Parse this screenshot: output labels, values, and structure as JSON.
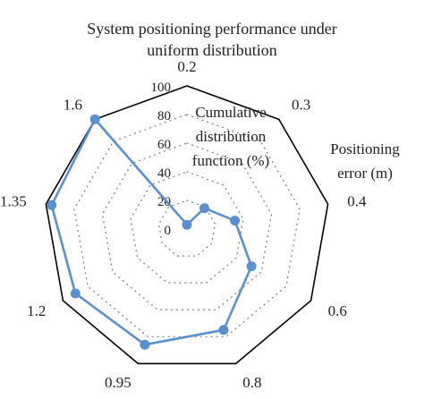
{
  "chart_data": {
    "type": "radar",
    "title": "System positioning performance under uniform distribution",
    "categories": [
      "0.2",
      "0.3",
      "0.4",
      "0.6",
      "0.8",
      "0.95",
      "1.2",
      "1.35",
      "1.6"
    ],
    "series": [
      {
        "name": "",
        "values": [
          3,
          19,
          34,
          52,
          75,
          86,
          90,
          96,
          100
        ]
      }
    ],
    "radial_axis": {
      "label": "Cumulative distribution function (%)",
      "ticks": [
        "0",
        "20",
        "40",
        "60",
        "80",
        "100"
      ],
      "range": [
        0,
        100
      ],
      "gridlines": "dotted"
    },
    "axis_label": "Positioning error (m)",
    "colors": {
      "series": "#5b8fd1",
      "outline": "#000000",
      "grid": "#777777"
    }
  }
}
